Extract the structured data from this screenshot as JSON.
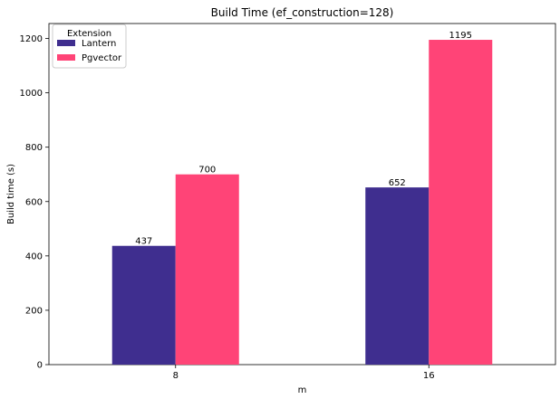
{
  "chart_data": {
    "type": "bar",
    "title": "Build Time (ef_construction=128)",
    "xlabel": "m",
    "ylabel": "Build time (s)",
    "categories": [
      "8",
      "16"
    ],
    "series": [
      {
        "name": "Lantern",
        "values": [
          437,
          652
        ],
        "color": "#3f2e8f"
      },
      {
        "name": "Pgvector",
        "values": [
          700,
          1195
        ],
        "color": "#ff4477"
      }
    ],
    "ylim": [
      0,
      1255
    ],
    "yticks": [
      0,
      200,
      400,
      600,
      800,
      1000,
      1200
    ],
    "legend": {
      "title": "Extension",
      "placement": "top-left"
    },
    "grid": false
  }
}
